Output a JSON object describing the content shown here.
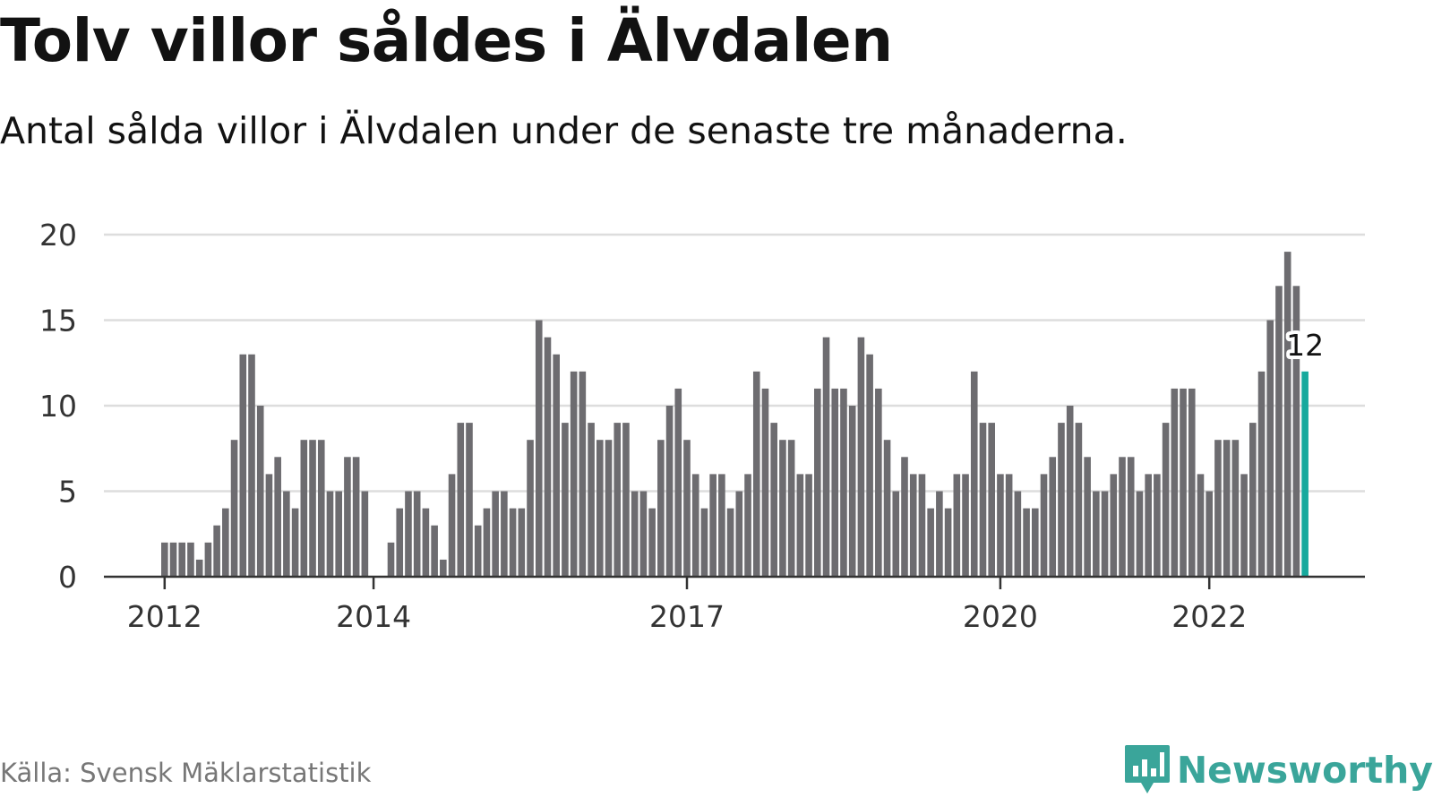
{
  "header": {
    "title": "Tolv villor såldes i Älvdalen",
    "subtitle": "Antal sålda villor i Älvdalen under de senaste tre månaderna."
  },
  "footer": {
    "source": "Källa: Svensk Mäklarstatistik",
    "brand": "Newsworthy",
    "logo_icon": "bar-chart-speech-bubble-icon"
  },
  "colors": {
    "bar": "#6d6c70",
    "highlight": "#16a99d",
    "grid": "#dddddd",
    "axis": "#333333",
    "brand": "#3aa59a"
  },
  "chart_data": {
    "type": "bar",
    "ylim": [
      0,
      20
    ],
    "yticks": [
      0,
      5,
      10,
      15,
      20
    ],
    "xtick_labels": [
      "2012",
      "2014",
      "2017",
      "2020",
      "2022"
    ],
    "xtick_dates": [
      "2012-01",
      "2014-01",
      "2017-01",
      "2020-01",
      "2022-01"
    ],
    "grid": true,
    "highlight_label": "12",
    "x": [
      "2012-01",
      "2012-02",
      "2012-03",
      "2012-04",
      "2012-05",
      "2012-06",
      "2012-07",
      "2012-08",
      "2012-09",
      "2012-10",
      "2012-11",
      "2012-12",
      "2013-01",
      "2013-02",
      "2013-03",
      "2013-04",
      "2013-05",
      "2013-06",
      "2013-07",
      "2013-08",
      "2013-09",
      "2013-10",
      "2013-11",
      "2013-12",
      "2014-01",
      "2014-02",
      "2014-03",
      "2014-04",
      "2014-05",
      "2014-06",
      "2014-07",
      "2014-08",
      "2014-09",
      "2014-10",
      "2014-11",
      "2014-12",
      "2015-01",
      "2015-02",
      "2015-03",
      "2015-04",
      "2015-05",
      "2015-06",
      "2015-07",
      "2015-08",
      "2015-09",
      "2015-10",
      "2015-11",
      "2015-12",
      "2016-01",
      "2016-02",
      "2016-03",
      "2016-04",
      "2016-05",
      "2016-06",
      "2016-07",
      "2016-08",
      "2016-09",
      "2016-10",
      "2016-11",
      "2016-12",
      "2017-01",
      "2017-02",
      "2017-03",
      "2017-04",
      "2017-05",
      "2017-06",
      "2017-07",
      "2017-08",
      "2017-09",
      "2017-10",
      "2017-11",
      "2017-12",
      "2018-01",
      "2018-02",
      "2018-03",
      "2018-04",
      "2018-05",
      "2018-06",
      "2018-07",
      "2018-08",
      "2018-09",
      "2018-10",
      "2018-11",
      "2018-12",
      "2019-01",
      "2019-02",
      "2019-03",
      "2019-04",
      "2019-05",
      "2019-06",
      "2019-07",
      "2019-08",
      "2019-09",
      "2019-10",
      "2019-11",
      "2019-12",
      "2020-01",
      "2020-02",
      "2020-03",
      "2020-04",
      "2020-05",
      "2020-06",
      "2020-07",
      "2020-08",
      "2020-09",
      "2020-10",
      "2020-11",
      "2020-12",
      "2021-01",
      "2021-02",
      "2021-03",
      "2021-04",
      "2021-05",
      "2021-06",
      "2021-07",
      "2021-08",
      "2021-09",
      "2021-10",
      "2021-11",
      "2021-12",
      "2022-01",
      "2022-02",
      "2022-03",
      "2022-04",
      "2022-05",
      "2022-06",
      "2022-07",
      "2022-08",
      "2022-09",
      "2022-10",
      "2022-11",
      "2022-12"
    ],
    "values": [
      2,
      2,
      2,
      2,
      1,
      2,
      3,
      4,
      8,
      13,
      13,
      10,
      6,
      7,
      5,
      4,
      8,
      8,
      8,
      5,
      5,
      7,
      7,
      5,
      0,
      0,
      2,
      4,
      5,
      5,
      4,
      3,
      1,
      6,
      9,
      9,
      3,
      4,
      5,
      5,
      4,
      4,
      8,
      15,
      14,
      13,
      9,
      12,
      12,
      9,
      8,
      8,
      9,
      9,
      5,
      5,
      4,
      8,
      10,
      11,
      8,
      6,
      4,
      6,
      6,
      4,
      5,
      6,
      12,
      11,
      9,
      8,
      8,
      6,
      6,
      11,
      14,
      11,
      11,
      10,
      14,
      13,
      11,
      8,
      5,
      7,
      6,
      6,
      4,
      5,
      4,
      6,
      6,
      12,
      9,
      9,
      6,
      6,
      5,
      4,
      4,
      6,
      7,
      9,
      10,
      9,
      7,
      5,
      5,
      6,
      7,
      7,
      5,
      6,
      6,
      9,
      11,
      11,
      11,
      6,
      5,
      8,
      8,
      8,
      6,
      9,
      12,
      15,
      17,
      19,
      17,
      12
    ],
    "highlight_index": 131
  }
}
